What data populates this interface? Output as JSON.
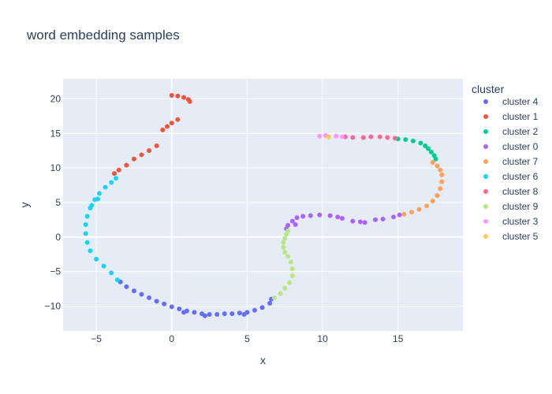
{
  "chart_data": {
    "type": "scatter",
    "title": "word embedding samples",
    "xlabel": "x",
    "ylabel": "y",
    "xlim": [
      -7.2,
      19.3
    ],
    "ylim": [
      -13.6,
      22.9
    ],
    "xticks": [
      -5,
      0,
      5,
      10,
      15
    ],
    "yticks": [
      -10,
      -5,
      0,
      5,
      10,
      15,
      20
    ],
    "grid": true,
    "legend": {
      "title": "cluster",
      "placement": "right"
    },
    "series": [
      {
        "name": "cluster 4",
        "color": "#636efa",
        "points": [
          [
            -3.4,
            -6.5
          ],
          [
            -3.0,
            -7.2
          ],
          [
            -2.5,
            -7.8
          ],
          [
            -2.0,
            -8.3
          ],
          [
            -1.5,
            -8.8
          ],
          [
            -1.0,
            -9.3
          ],
          [
            -0.5,
            -9.7
          ],
          [
            0.0,
            -10.1
          ],
          [
            0.5,
            -10.4
          ],
          [
            1.0,
            -10.7
          ],
          [
            1.5,
            -10.9
          ],
          [
            2.0,
            -11.1
          ],
          [
            2.5,
            -11.2
          ],
          [
            3.0,
            -11.2
          ],
          [
            3.5,
            -11.1
          ],
          [
            4.0,
            -11.1
          ],
          [
            4.5,
            -11.0
          ],
          [
            5.0,
            -10.9
          ],
          [
            5.5,
            -10.6
          ],
          [
            6.0,
            -10.2
          ],
          [
            6.5,
            -9.6
          ],
          [
            6.6,
            -9.0
          ],
          [
            2.2,
            -11.4
          ],
          [
            4.8,
            -11.2
          ],
          [
            0.8,
            -10.9
          ]
        ]
      },
      {
        "name": "cluster 1",
        "color": "#ef553b",
        "points": [
          [
            0.0,
            20.5
          ],
          [
            0.4,
            20.4
          ],
          [
            0.8,
            20.2
          ],
          [
            1.1,
            19.9
          ],
          [
            1.2,
            19.6
          ],
          [
            0.4,
            17.0
          ],
          [
            0.0,
            16.5
          ],
          [
            -0.3,
            16.0
          ],
          [
            -0.6,
            15.5
          ],
          [
            -1.0,
            13.2
          ],
          [
            -1.5,
            12.5
          ],
          [
            -2.0,
            11.9
          ],
          [
            -2.5,
            11.3
          ],
          [
            -3.0,
            10.4
          ],
          [
            -3.5,
            9.7
          ],
          [
            -3.8,
            9.2
          ]
        ]
      },
      {
        "name": "cluster 2",
        "color": "#00cc96",
        "points": [
          [
            15.0,
            14.2
          ],
          [
            15.5,
            14.1
          ],
          [
            16.0,
            13.9
          ],
          [
            16.5,
            13.6
          ],
          [
            16.8,
            13.2
          ],
          [
            17.0,
            12.8
          ],
          [
            17.2,
            12.3
          ],
          [
            17.4,
            11.8
          ],
          [
            17.5,
            11.3
          ]
        ]
      },
      {
        "name": "cluster 0",
        "color": "#ab63fa",
        "points": [
          [
            7.6,
            1.2
          ],
          [
            7.7,
            1.7
          ],
          [
            8.0,
            2.3
          ],
          [
            8.3,
            2.8
          ],
          [
            8.7,
            3.0
          ],
          [
            9.2,
            3.1
          ],
          [
            9.8,
            3.2
          ],
          [
            10.5,
            3.1
          ],
          [
            11.0,
            2.9
          ],
          [
            11.3,
            2.7
          ],
          [
            12.0,
            2.3
          ],
          [
            12.5,
            2.2
          ],
          [
            13.5,
            2.5
          ],
          [
            14.0,
            2.6
          ],
          [
            14.7,
            2.9
          ],
          [
            15.1,
            3.2
          ],
          [
            8.2,
            1.8
          ],
          [
            12.8,
            2.1
          ]
        ]
      },
      {
        "name": "cluster 7",
        "color": "#ffa15a",
        "points": [
          [
            15.4,
            3.3
          ],
          [
            15.9,
            3.6
          ],
          [
            16.4,
            4.0
          ],
          [
            16.9,
            4.5
          ],
          [
            17.3,
            5.2
          ],
          [
            17.6,
            6.0
          ],
          [
            17.8,
            7.0
          ],
          [
            17.9,
            8.0
          ],
          [
            17.9,
            9.0
          ],
          [
            17.8,
            9.7
          ],
          [
            17.6,
            10.3
          ],
          [
            17.3,
            10.8
          ]
        ]
      },
      {
        "name": "cluster 6",
        "color": "#19d3f3",
        "points": [
          [
            -3.6,
            -6.2
          ],
          [
            -4.0,
            -5.2
          ],
          [
            -4.5,
            -4.2
          ],
          [
            -5.0,
            -3.2
          ],
          [
            -5.4,
            -2.0
          ],
          [
            -5.6,
            -0.8
          ],
          [
            -5.7,
            0.5
          ],
          [
            -5.7,
            1.8
          ],
          [
            -5.6,
            3.0
          ],
          [
            -5.4,
            4.2
          ],
          [
            -5.1,
            5.4
          ],
          [
            -4.8,
            6.3
          ],
          [
            -4.4,
            7.2
          ],
          [
            -4.0,
            7.9
          ],
          [
            -3.7,
            8.5
          ],
          [
            -5.3,
            4.6
          ],
          [
            -4.9,
            5.5
          ]
        ]
      },
      {
        "name": "cluster 8",
        "color": "#ff6692",
        "points": [
          [
            11.5,
            14.5
          ],
          [
            12.0,
            14.4
          ],
          [
            12.7,
            14.4
          ],
          [
            13.2,
            14.5
          ],
          [
            13.8,
            14.5
          ],
          [
            14.3,
            14.4
          ],
          [
            14.8,
            14.3
          ]
        ]
      },
      {
        "name": "cluster 9",
        "color": "#b6e880",
        "points": [
          [
            6.8,
            -8.8
          ],
          [
            7.2,
            -8.2
          ],
          [
            7.5,
            -7.4
          ],
          [
            7.8,
            -6.6
          ],
          [
            8.0,
            -5.6
          ],
          [
            8.0,
            -4.6
          ],
          [
            7.9,
            -3.6
          ],
          [
            7.7,
            -2.8
          ],
          [
            7.5,
            -2.2
          ],
          [
            7.4,
            -1.5
          ],
          [
            7.4,
            -0.8
          ],
          [
            7.5,
            -0.2
          ],
          [
            7.6,
            0.4
          ],
          [
            7.7,
            0.9
          ]
        ]
      },
      {
        "name": "cluster 3",
        "color": "#ff97ff",
        "points": [
          [
            9.8,
            14.6
          ],
          [
            10.2,
            14.7
          ],
          [
            10.9,
            14.6
          ],
          [
            11.3,
            14.5
          ]
        ]
      },
      {
        "name": "cluster 5",
        "color": "#fecb52",
        "points": [
          [
            10.4,
            14.5
          ]
        ]
      }
    ]
  }
}
